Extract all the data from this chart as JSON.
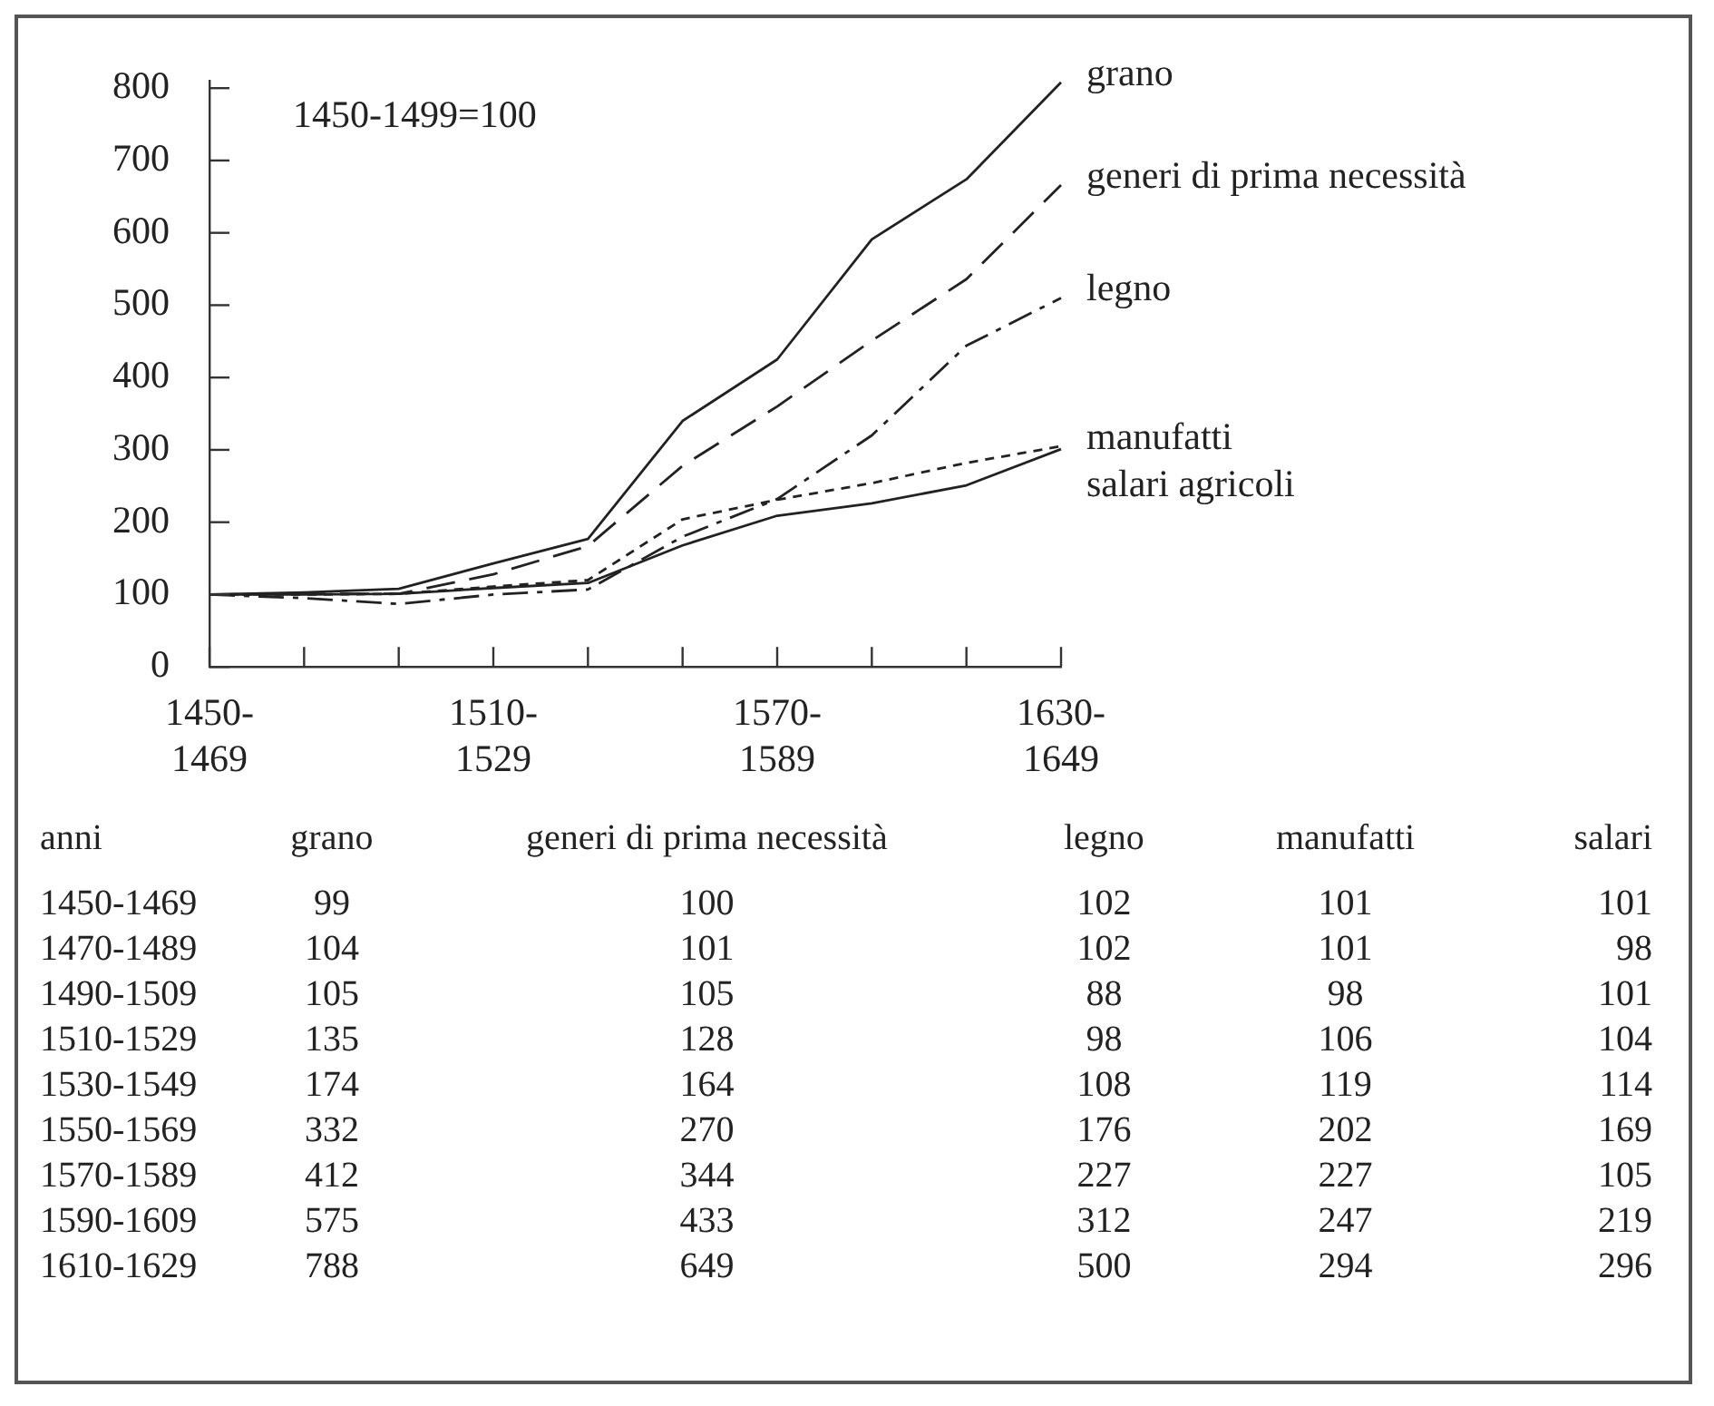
{
  "chart_data": [
    {
      "type": "line",
      "categories": [
        "1450-1469",
        null,
        null,
        "1510-1529",
        null,
        null,
        "1570-1589",
        null,
        null,
        "1630-1649"
      ],
      "annotations": [
        "1450-1499=100"
      ],
      "ylim": [
        0,
        810
      ],
      "yticks": [
        0,
        100,
        200,
        300,
        400,
        500,
        600,
        700,
        800
      ],
      "grid": false,
      "legend": false,
      "marker": "none",
      "series": [
        {
          "name": "grano",
          "color": "#222222",
          "line_style": "solid",
          "values": [
            100,
            103,
            108,
            143,
            177,
            340,
            425,
            591,
            674,
            808
          ]
        },
        {
          "name": "generi di prima necessità",
          "color": "#222222",
          "line_style": "dashed",
          "values": [
            100,
            101,
            101,
            128,
            167,
            278,
            360,
            451,
            536,
            666
          ]
        },
        {
          "name": "legno",
          "color": "#222222",
          "line_style": "dashdot",
          "values": [
            100,
            95,
            87,
            100,
            107,
            180,
            232,
            320,
            444,
            510
          ]
        },
        {
          "name": "manufatti",
          "color": "#222222",
          "line_style": "dotted",
          "values": [
            100,
            100,
            101,
            111,
            120,
            204,
            231,
            254,
            282,
            305
          ]
        },
        {
          "name": "salari agricoli",
          "color": "#222222",
          "line_style": "solid",
          "values": [
            100,
            100,
            101,
            109,
            116,
            168,
            209,
            226,
            251,
            301
          ]
        }
      ]
    },
    {
      "type": "other",
      "xlabel": "anni",
      "data_labels": true,
      "categories": [
        "1450-1469",
        "1470-1489",
        "1490-1509",
        "1510-1529",
        "1530-1549",
        "1550-1569",
        "1570-1589",
        "1590-1609",
        "1610-1629"
      ],
      "series": [
        {
          "name": "grano",
          "values": [
            99,
            104,
            105,
            135,
            174,
            332,
            412,
            575,
            788
          ]
        },
        {
          "name": "generi di prima necessità",
          "values": [
            100,
            101,
            105,
            128,
            164,
            270,
            344,
            433,
            649
          ]
        },
        {
          "name": "legno",
          "values": [
            102,
            102,
            88,
            98,
            108,
            176,
            227,
            312,
            500
          ]
        },
        {
          "name": "manufatti",
          "values": [
            101,
            101,
            98,
            106,
            119,
            202,
            227,
            247,
            294
          ]
        },
        {
          "name": "salari",
          "values": [
            101,
            98,
            101,
            104,
            114,
            169,
            105,
            219,
            296
          ]
        }
      ]
    }
  ]
}
